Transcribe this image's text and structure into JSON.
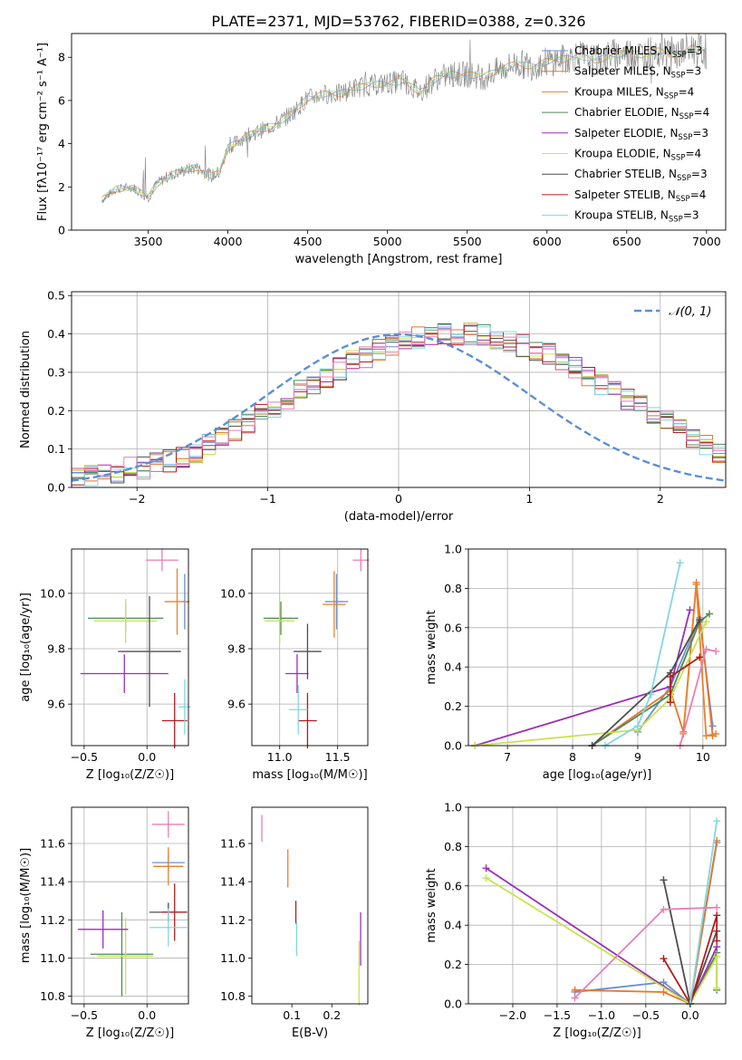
{
  "title": "PLATE=2371, MJD=53762, FIBERID=0388, z=0.326",
  "colors": {
    "Chabrier MILES": "#6b8fd6",
    "Salpeter MILES": "#e8762a",
    "Kroupa MILES": "#e8822e",
    "Chabrier ELODIE": "#4d8a57",
    "Salpeter ELODIE": "#9b2fb4",
    "Kroupa ELODIE": "#c9e34f",
    "Chabrier STELIB": "#4d4d4d",
    "Salpeter STELIB": "#b01c1c",
    "Kroupa STELIB": "#80d8e0",
    "pink": "#e87fb4"
  },
  "chart_data": [
    {
      "type": "line",
      "xlabel": "wavelength [Angstrom, rest frame]",
      "ylabel": "Flux [f$_\\lambda$10$^{-17}$ erg cm$^{-2}$ s$^{-1}$ A$^{-1}$]",
      "ylabel_text": "Flux [fλ10⁻¹⁷ erg cm⁻² s⁻¹ A⁻¹]",
      "xlim": [
        3020,
        7120
      ],
      "ylim": [
        0,
        9.1
      ],
      "xticks": [
        "3500",
        "4000",
        "4500",
        "5000",
        "5500",
        "6000",
        "6500",
        "7000"
      ],
      "xtick_vals": [
        3500,
        4000,
        4500,
        5000,
        5500,
        6000,
        6500,
        7000
      ],
      "yticks": [
        "0",
        "2",
        "4",
        "6",
        "8"
      ],
      "ytick_vals": [
        0,
        2,
        4,
        6,
        8
      ],
      "legend": [
        {
          "name": "Chabrier MILES",
          "sub": "3"
        },
        {
          "name": "Salpeter MILES",
          "sub": "3"
        },
        {
          "name": "Kroupa MILES",
          "sub": "4"
        },
        {
          "name": "Chabrier ELODIE",
          "sub": "4"
        },
        {
          "name": "Salpeter ELODIE",
          "sub": "3"
        },
        {
          "name": "Kroupa ELODIE",
          "sub": "4"
        },
        {
          "name": "Chabrier STELIB",
          "sub": "3"
        },
        {
          "name": "Salpeter STELIB",
          "sub": "4"
        },
        {
          "name": "Kroupa STELIB",
          "sub": "3"
        }
      ],
      "legend_prefix": "N",
      "legend_sub_label": "SSP",
      "legend_placement": "top-right",
      "series": [
        {
          "name": "data",
          "x": [
            3210,
            3300,
            3400,
            3500,
            3550,
            3600,
            3700,
            3800,
            3900,
            3950,
            4000,
            4100,
            4200,
            4300,
            4400,
            4500,
            4600,
            4700,
            4800,
            4900,
            5000,
            5100,
            5200,
            5300,
            5400,
            5500,
            5600,
            5700,
            5800,
            5900,
            6000,
            6100,
            6200,
            6300,
            6400,
            6500,
            6600,
            6700,
            6800,
            6900,
            7000
          ],
          "y": [
            1.4,
            1.9,
            2.0,
            1.5,
            2.1,
            2.4,
            2.7,
            2.9,
            2.5,
            2.7,
            3.8,
            4.3,
            4.6,
            4.9,
            5.4,
            6.1,
            6.3,
            6.3,
            6.6,
            6.7,
            6.8,
            6.9,
            6.4,
            7.0,
            7.2,
            7.2,
            7.1,
            7.4,
            7.7,
            7.6,
            7.8,
            7.9,
            8.1,
            7.8,
            8.1,
            8.2,
            8.1,
            8.3,
            8.1,
            8.4,
            8.3
          ]
        }
      ]
    },
    {
      "type": "line",
      "xlabel": "(data-model)/error",
      "ylabel": "Normed distribution",
      "xlim": [
        -2.5,
        2.5
      ],
      "ylim": [
        0,
        0.51
      ],
      "xticks": [
        "−2",
        "−1",
        "0",
        "1",
        "2"
      ],
      "xtick_vals": [
        -2,
        -1,
        0,
        1,
        2
      ],
      "yticks": [
        "0.0",
        "0.1",
        "0.2",
        "0.3",
        "0.4",
        "0.5"
      ],
      "ytick_vals": [
        0,
        0.1,
        0.2,
        0.3,
        0.4,
        0.5
      ],
      "grid": true,
      "legend": [
        "𝒩(0, 1)"
      ],
      "legend_placement": "top-right",
      "bin_edges_start": -2.5,
      "bin_width": 0.1,
      "hist_base": [
        0.03,
        0.03,
        0.04,
        0.04,
        0.05,
        0.05,
        0.06,
        0.07,
        0.08,
        0.09,
        0.11,
        0.13,
        0.15,
        0.17,
        0.19,
        0.21,
        0.23,
        0.25,
        0.27,
        0.29,
        0.31,
        0.33,
        0.34,
        0.36,
        0.37,
        0.38,
        0.39,
        0.4,
        0.4,
        0.4,
        0.4,
        0.4,
        0.39,
        0.38,
        0.37,
        0.36,
        0.35,
        0.33,
        0.31,
        0.29,
        0.27,
        0.25,
        0.23,
        0.21,
        0.19,
        0.17,
        0.15,
        0.13,
        0.11,
        0.09,
        0.08
      ]
    },
    {
      "type": "scatter",
      "xlabel": "Z [log$_{10}$(Z/Z$_\\odot$)]",
      "xlabel_text": "Z [log₁₀(Z/Z☉)]",
      "ylabel": "age  [log$_{10}$(age/yr)]",
      "ylabel_text": "age  [log₁₀(age/yr)]",
      "xlim": [
        -0.6,
        0.33
      ],
      "ylim": [
        9.45,
        10.16
      ],
      "xticks": [
        "−0.5",
        "0.0"
      ],
      "xtick_vals": [
        -0.5,
        0.0
      ],
      "yticks": [
        "9.6",
        "9.8",
        "10.0"
      ],
      "ytick_vals": [
        9.6,
        9.8,
        10.0
      ],
      "grid": true,
      "points": [
        {
          "c": "Chabrier MILES",
          "x": 0.3,
          "xe": 0.02,
          "y": 9.97,
          "ye": 0.1
        },
        {
          "c": "Kroupa MILES",
          "x": 0.24,
          "xe": 0.1,
          "y": 9.97,
          "ye": 0.12
        },
        {
          "c": "Chabrier ELODIE",
          "x": -0.17,
          "xe": 0.3,
          "y": 9.91,
          "ye": 0.05
        },
        {
          "c": "Kroupa ELODIE",
          "x": -0.17,
          "xe": 0.25,
          "y": 9.9,
          "ye": 0.08
        },
        {
          "c": "Salpeter ELODIE",
          "x": -0.18,
          "xe": 0.35,
          "y": 9.71,
          "ye": 0.07
        },
        {
          "c": "Chabrier STELIB",
          "x": 0.02,
          "xe": 0.25,
          "y": 9.79,
          "ye": 0.2
        },
        {
          "c": "Salpeter STELIB",
          "x": 0.22,
          "xe": 0.1,
          "y": 9.54,
          "ye": 0.1
        },
        {
          "c": "Kroupa STELIB",
          "x": 0.3,
          "xe": 0.05,
          "y": 9.59,
          "ye": 0.1
        },
        {
          "c": "pink",
          "x": 0.12,
          "xe": 0.13,
          "y": 10.12,
          "ye": 0.04
        }
      ]
    },
    {
      "type": "scatter",
      "xlabel": "mass [log$_{10}$(M/M$_\\odot$)]",
      "xlabel_text": "mass [log₁₀(M/M☉)]",
      "ylabel": "",
      "xlim": [
        10.76,
        11.76
      ],
      "ylim": [
        9.45,
        10.16
      ],
      "xticks": [
        "11.0",
        "11.5"
      ],
      "xtick_vals": [
        11.0,
        11.5
      ],
      "yticks": [
        "9.6",
        "9.8",
        "10.0"
      ],
      "ytick_vals": [
        9.6,
        9.8,
        10.0
      ],
      "grid": true,
      "points": [
        {
          "c": "Chabrier MILES",
          "x": 11.49,
          "xe": 0.1,
          "y": 9.97,
          "ye": 0.1
        },
        {
          "c": "Kroupa MILES",
          "x": 11.47,
          "xe": 0.1,
          "y": 9.96,
          "ye": 0.12
        },
        {
          "c": "Chabrier ELODIE",
          "x": 11.01,
          "xe": 0.15,
          "y": 9.91,
          "ye": 0.06
        },
        {
          "c": "Kroupa ELODIE",
          "x": 11.0,
          "xe": 0.13,
          "y": 9.9,
          "ye": 0.08
        },
        {
          "c": "Salpeter ELODIE",
          "x": 11.15,
          "xe": 0.1,
          "y": 9.71,
          "ye": 0.07
        },
        {
          "c": "Chabrier STELIB",
          "x": 11.24,
          "xe": 0.12,
          "y": 9.79,
          "ye": 0.1
        },
        {
          "c": "Salpeter STELIB",
          "x": 11.24,
          "xe": 0.08,
          "y": 9.54,
          "ye": 0.1
        },
        {
          "c": "Kroupa STELIB",
          "x": 11.16,
          "xe": 0.08,
          "y": 9.58,
          "ye": 0.09
        },
        {
          "c": "pink",
          "x": 11.7,
          "xe": 0.07,
          "y": 10.12,
          "ye": 0.04
        }
      ]
    },
    {
      "type": "line",
      "xlabel": "age  [log$_{10}$(age/yr)]",
      "xlabel_text": "age  [log₁₀(age/yr)]",
      "ylabel": "mass weight",
      "xlim": [
        6.4,
        10.35
      ],
      "ylim": [
        0,
        1.0
      ],
      "xticks": [
        "7",
        "8",
        "9",
        "10"
      ],
      "xtick_vals": [
        7,
        8,
        9,
        10
      ],
      "yticks": [
        "0.0",
        "0.2",
        "0.4",
        "0.6",
        "0.8",
        "1.0"
      ],
      "ytick_vals": [
        0,
        0.2,
        0.4,
        0.6,
        0.8,
        1.0
      ],
      "grid": true,
      "series": [
        {
          "c": "Chabrier MILES",
          "x": [
            9.0,
            9.5,
            9.95,
            10.15
          ],
          "y": [
            0.07,
            0.3,
            0.65,
            0.1
          ]
        },
        {
          "c": "Salpeter MILES",
          "x": [
            8.3,
            9.5,
            9.7,
            9.9,
            10.15
          ],
          "y": [
            0.0,
            0.28,
            0.07,
            0.83,
            0.05
          ]
        },
        {
          "c": "Kroupa MILES",
          "x": [
            9.7,
            9.9,
            10.05,
            10.2
          ],
          "y": [
            0.06,
            0.82,
            0.05,
            0.06
          ]
        },
        {
          "c": "Chabrier ELODIE",
          "x": [
            8.3,
            9.5,
            9.95,
            10.1
          ],
          "y": [
            0.0,
            0.26,
            0.63,
            0.67
          ]
        },
        {
          "c": "Salpeter ELODIE",
          "x": [
            6.5,
            9.5,
            9.8
          ],
          "y": [
            0.0,
            0.3,
            0.69
          ]
        },
        {
          "c": "Kroupa ELODIE",
          "x": [
            6.5,
            9.0,
            9.5,
            10.05
          ],
          "y": [
            0.0,
            0.08,
            0.24,
            0.63
          ]
        },
        {
          "c": "Chabrier STELIB",
          "x": [
            8.3,
            9.5,
            9.95
          ],
          "y": [
            0.0,
            0.37,
            0.64
          ]
        },
        {
          "c": "Salpeter STELIB",
          "x": [
            9.5,
            9.5,
            9.95
          ],
          "y": [
            0.22,
            0.35,
            0.45
          ]
        },
        {
          "c": "Kroupa STELIB",
          "x": [
            8.5,
            9.0,
            9.2,
            9.65
          ],
          "y": [
            0.0,
            0.1,
            0.26,
            0.93
          ]
        },
        {
          "c": "pink",
          "x": [
            9.65,
            10.05,
            10.2
          ],
          "y": [
            0.0,
            0.49,
            0.48
          ]
        }
      ]
    },
    {
      "type": "scatter",
      "xlabel": "Z [log$_{10}$(Z/Z$_\\odot$)]",
      "xlabel_text": "Z [log₁₀(Z/Z☉)]",
      "ylabel": "mass [log$_{10}$(M/M$_\\odot$)]",
      "ylabel_text": "mass [log₁₀(M/M☉)]",
      "xlim": [
        -0.6,
        0.33
      ],
      "ylim": [
        10.76,
        11.79
      ],
      "xticks": [
        "−0.5",
        "0.0"
      ],
      "xtick_vals": [
        -0.5,
        0.0
      ],
      "yticks": [
        "10.8",
        "11.0",
        "11.2",
        "11.4",
        "11.6"
      ],
      "ytick_vals": [
        10.8,
        11.0,
        11.2,
        11.4,
        11.6
      ],
      "grid": true,
      "points": [
        {
          "c": "Chabrier MILES",
          "x": 0.17,
          "xe": 0.13,
          "y": 11.5,
          "ye": 0.05
        },
        {
          "c": "Kroupa MILES",
          "x": 0.17,
          "xe": 0.12,
          "y": 11.48,
          "ye": 0.1
        },
        {
          "c": "Chabrier ELODIE",
          "x": -0.2,
          "xe": 0.25,
          "y": 11.02,
          "ye": 0.22
        },
        {
          "c": "Kroupa ELODIE",
          "x": -0.17,
          "xe": 0.22,
          "y": 11.01,
          "ye": 0.2
        },
        {
          "c": "Salpeter ELODIE",
          "x": -0.35,
          "xe": 0.2,
          "y": 11.15,
          "ye": 0.1
        },
        {
          "c": "Chabrier STELIB",
          "x": 0.17,
          "xe": 0.15,
          "y": 11.24,
          "ye": 0.05
        },
        {
          "c": "Salpeter STELIB",
          "x": 0.22,
          "xe": 0.1,
          "y": 11.24,
          "ye": 0.15
        },
        {
          "c": "Kroupa STELIB",
          "x": 0.17,
          "xe": 0.15,
          "y": 11.16,
          "ye": 0.1
        },
        {
          "c": "pink",
          "x": 0.17,
          "xe": 0.13,
          "y": 11.7,
          "ye": 0.07
        }
      ]
    },
    {
      "type": "scatter",
      "xlabel": "E(B-V)",
      "ylabel": "",
      "xlim": [
        0.0,
        0.29
      ],
      "ylim": [
        10.76,
        11.79
      ],
      "xticks": [
        "0.1",
        "0.2"
      ],
      "xtick_vals": [
        0.1,
        0.2
      ],
      "yticks": [
        "10.8",
        "11.0",
        "11.2",
        "11.4",
        "11.6"
      ],
      "ytick_vals": [
        10.8,
        11.0,
        11.2,
        11.4,
        11.6
      ],
      "grid": false,
      "points": [
        {
          "c": "pink",
          "x": 0.025,
          "xe": 0,
          "y": 11.68,
          "ye": 0.07
        },
        {
          "c": "Kroupa MILES",
          "x": 0.09,
          "xe": 0,
          "y": 11.47,
          "ye": 0.1
        },
        {
          "c": "Salpeter STELIB",
          "x": 0.11,
          "xe": 0,
          "y": 11.24,
          "ye": 0.06
        },
        {
          "c": "Kroupa STELIB",
          "x": 0.112,
          "xe": 0,
          "y": 11.1,
          "ye": 0.09
        },
        {
          "c": "Salpeter ELODIE",
          "x": 0.272,
          "xe": 0,
          "y": 11.1,
          "ye": 0.14
        },
        {
          "c": "Kroupa ELODIE",
          "x": 0.268,
          "xe": 0,
          "y": 10.92,
          "ye": 0.17
        }
      ]
    },
    {
      "type": "line",
      "xlabel": "Z [log$_{10}$(Z/Z$_\\odot$)]",
      "xlabel_text": "Z [log₁₀(Z/Z☉)]",
      "ylabel": "mass weight",
      "xlim": [
        -2.5,
        0.4
      ],
      "ylim": [
        0,
        1.0
      ],
      "xticks": [
        "−2.0",
        "−1.5",
        "−1.0",
        "−0.5",
        "0.0"
      ],
      "xtick_vals": [
        -2,
        -1.5,
        -1,
        -0.5,
        0
      ],
      "yticks": [
        "0.0",
        "0.2",
        "0.4",
        "0.6",
        "0.8",
        "1.0"
      ],
      "ytick_vals": [
        0,
        0.2,
        0.4,
        0.6,
        0.8,
        1.0
      ],
      "grid": true,
      "series": [
        {
          "c": "Chabrier MILES",
          "x": [
            -1.3,
            -0.3,
            0.0,
            0.3
          ],
          "y": [
            0.06,
            0.11,
            0.0,
            0.82
          ]
        },
        {
          "c": "Salpeter MILES",
          "x": [
            -1.3,
            -0.3,
            0.0,
            0.3
          ],
          "y": [
            0.07,
            0.06,
            0.0,
            0.83
          ]
        },
        {
          "c": "Chabrier ELODIE",
          "x": [
            0.0,
            0.3,
            0.3
          ],
          "y": [
            0.0,
            0.26,
            0.07
          ]
        },
        {
          "c": "Salpeter ELODIE",
          "x": [
            -2.3,
            0.0,
            0.3
          ],
          "y": [
            0.69,
            0.0,
            0.29
          ]
        },
        {
          "c": "Kroupa ELODIE",
          "x": [
            -2.3,
            0.0,
            0.3,
            0.3
          ],
          "y": [
            0.64,
            0.0,
            0.24,
            0.08
          ]
        },
        {
          "c": "Chabrier STELIB",
          "x": [
            -0.3,
            0.0,
            0.3
          ],
          "y": [
            0.63,
            0.0,
            0.37
          ]
        },
        {
          "c": "Salpeter STELIB",
          "x": [
            -0.3,
            0.0,
            0.3,
            0.3
          ],
          "y": [
            0.23,
            0.0,
            0.45,
            0.32
          ]
        },
        {
          "c": "Kroupa STELIB",
          "x": [
            0.0,
            0.3
          ],
          "y": [
            0.0,
            0.93
          ]
        },
        {
          "c": "pink",
          "x": [
            -1.3,
            -0.3,
            0.3
          ],
          "y": [
            0.03,
            0.48,
            0.49
          ]
        }
      ]
    }
  ]
}
